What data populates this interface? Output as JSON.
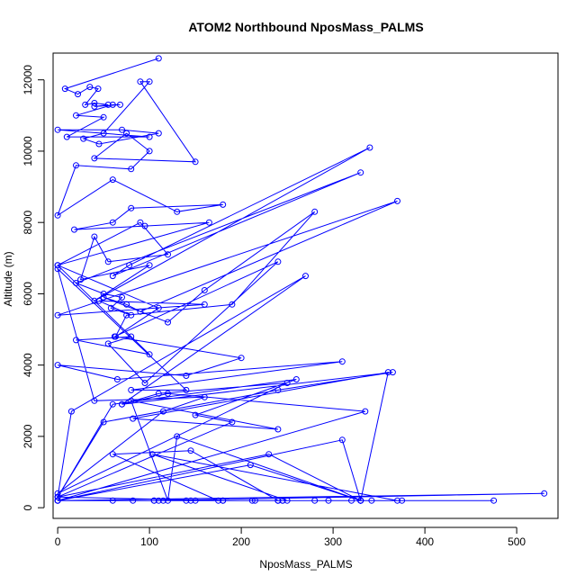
{
  "chart_data": {
    "type": "line",
    "title": "ATOM2 Northbound NposMass_PALMS",
    "xlabel": "NposMass_PALMS",
    "ylabel": "Altitude (m)",
    "xlim": [
      -5,
      545
    ],
    "ylim": [
      -300,
      12750
    ],
    "x_ticks": [
      0,
      100,
      200,
      300,
      400,
      500
    ],
    "y_ticks": [
      0,
      2000,
      4000,
      6000,
      8000,
      10000,
      12000
    ],
    "color": "#0000ff",
    "series": [
      {
        "x": [
          110,
          8,
          22,
          35,
          44,
          30,
          40,
          55,
          40,
          68,
          60,
          20,
          50,
          10,
          100,
          0,
          70,
          110,
          45,
          28,
          50,
          100,
          90,
          150,
          40,
          75,
          100,
          80,
          20,
          0,
          60,
          130,
          180,
          80,
          60,
          18,
          95,
          165,
          0,
          90,
          120,
          55,
          40,
          25,
          100,
          40,
          340,
          78,
          60,
          330,
          20,
          50,
          70,
          58,
          80,
          45,
          160,
          0,
          370,
          90,
          75,
          50,
          120,
          160,
          280,
          190,
          75,
          63,
          110,
          0,
          100,
          20,
          80,
          55,
          95,
          240,
          62,
          200,
          140,
          0,
          65,
          310,
          80,
          140,
          0,
          40,
          160,
          115,
          0,
          250,
          110,
          70,
          270,
          15,
          0,
          60,
          260,
          150,
          190,
          0,
          50,
          240,
          365,
          70,
          120,
          335,
          0,
          210,
          330,
          360,
          82,
          240,
          80,
          120,
          130,
          330,
          310,
          0,
          330,
          175,
          60,
          145,
          240,
          330,
          230,
          0,
          180,
          240,
          115,
          150,
          320,
          0,
          212,
          342,
          60,
          140,
          245,
          280,
          370,
          103,
          250,
          105,
          240,
          295,
          145,
          475,
          110,
          180,
          105,
          530,
          0,
          375,
          245,
          330,
          215,
          82
        ],
        "y": [
          12600,
          11750,
          11600,
          11800,
          11750,
          11300,
          11350,
          11300,
          11250,
          11300,
          11300,
          11000,
          10950,
          10400,
          10400,
          10600,
          10600,
          10500,
          10200,
          10350,
          10500,
          11950,
          11950,
          9700,
          9800,
          10500,
          10000,
          9500,
          9600,
          8200,
          9200,
          8300,
          8500,
          8400,
          8000,
          7800,
          7900,
          8000,
          6800,
          8000,
          7100,
          6900,
          7600,
          6400,
          6800,
          5800,
          10100,
          6800,
          6500,
          9400,
          6300,
          6000,
          5900,
          5600,
          5400,
          5800,
          5700,
          5400,
          8600,
          5500,
          5700,
          5900,
          5200,
          6100,
          8300,
          5700,
          5400,
          4800,
          5600,
          6800,
          4300,
          4700,
          4800,
          4600,
          3500,
          6900,
          4800,
          4200,
          3700,
          4000,
          3600,
          4100,
          3300,
          3300,
          6700,
          3000,
          3100,
          2700,
          400,
          3500,
          3200,
          2900,
          6500,
          2700,
          300,
          2900,
          3600,
          2600,
          2400,
          300,
          2400,
          3300,
          3800,
          2900,
          3200,
          2700,
          200,
          1200,
          200,
          3800,
          2500,
          2200,
          3000,
          200,
          2000,
          200,
          1900,
          200,
          200,
          200,
          1500,
          1600,
          200,
          200,
          1500,
          300,
          200,
          200,
          200,
          200,
          200,
          200,
          200,
          200,
          200,
          200,
          200,
          200,
          200,
          1500,
          200,
          200,
          200,
          200,
          200,
          200,
          200,
          200,
          200,
          400,
          200,
          200,
          200,
          200,
          200,
          200
        ]
      }
    ]
  }
}
